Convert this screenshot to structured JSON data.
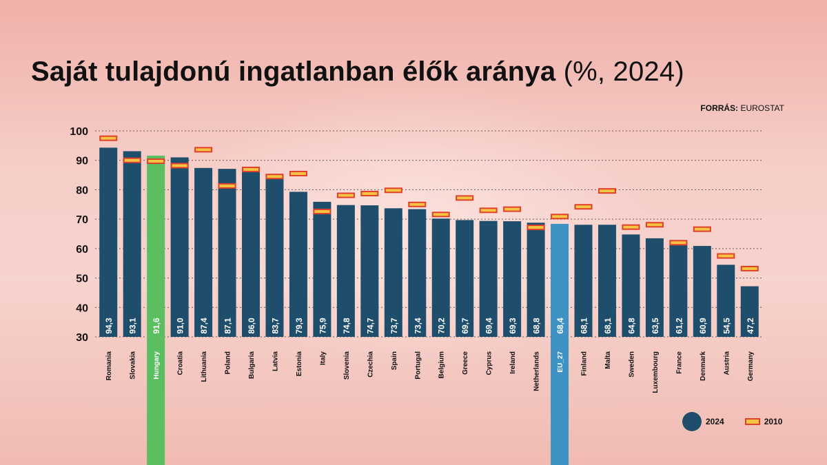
{
  "title": {
    "bold": "Saját tulajdonú ingatlanban élők aránya",
    "light": "(%, 2024)"
  },
  "source": {
    "label": "FORRÁS:",
    "value": "EUROSTAT"
  },
  "legend": {
    "current": "2024",
    "previous": "2010"
  },
  "colors": {
    "bar": "#1f4e6c",
    "hungary": "#5bbf62",
    "eu": "#3e93c4",
    "marker_fill": "#f4c542",
    "marker_border": "#e0402b"
  },
  "chart_data": {
    "type": "bar",
    "categories": [
      "Romania",
      "Slovakia",
      "Hungary",
      "Croatia",
      "Lithuania",
      "Poland",
      "Bulgaria",
      "Latvia",
      "Estonia",
      "Italy",
      "Slovenia",
      "Czechia",
      "Spain",
      "Portugal",
      "Belgium",
      "Greece",
      "Cyprus",
      "Ireland",
      "Netherlands",
      "EU_27",
      "Finland",
      "Malta",
      "Sweden",
      "Luxembourg",
      "France",
      "Denmark",
      "Austria",
      "Germany"
    ],
    "series": [
      {
        "name": "2024",
        "values": [
          94.3,
          93.1,
          91.6,
          91.0,
          87.4,
          87.1,
          86.0,
          83.7,
          79.3,
          75.9,
          74.8,
          74.7,
          73.7,
          73.4,
          70.2,
          69.7,
          69.4,
          69.3,
          68.8,
          68.4,
          68.1,
          68.1,
          64.8,
          63.5,
          61.2,
          60.9,
          54.5,
          47.2
        ],
        "labels": [
          "94,3",
          "93,1",
          "91,6",
          "91,0",
          "87,4",
          "87,1",
          "86,0",
          "83,7",
          "79,3",
          "75,9",
          "74,8",
          "74,7",
          "73,7",
          "73,4",
          "70,2",
          "69,7",
          "69,4",
          "69,3",
          "68,8",
          "68,4",
          "68,1",
          "68,1",
          "64,8",
          "63,5",
          "61,2",
          "60,9",
          "54,5",
          "47,2"
        ]
      },
      {
        "name": "2010",
        "values": [
          97.5,
          90.0,
          89.7,
          88.2,
          93.6,
          81.3,
          86.9,
          84.5,
          85.5,
          72.6,
          78.1,
          78.7,
          79.8,
          75.0,
          71.6,
          77.2,
          73.0,
          73.4,
          67.2,
          70.9,
          74.2,
          79.6,
          67.3,
          68.1,
          62.0,
          66.6,
          57.5,
          53.2
        ]
      }
    ],
    "highlights": {
      "Hungary": "hungary",
      "EU_27": "eu"
    },
    "yticks": [
      30,
      40,
      50,
      60,
      70,
      80,
      90,
      100
    ],
    "ylim": [
      30,
      100
    ],
    "grid": true,
    "legend_position": "bottom-right"
  }
}
